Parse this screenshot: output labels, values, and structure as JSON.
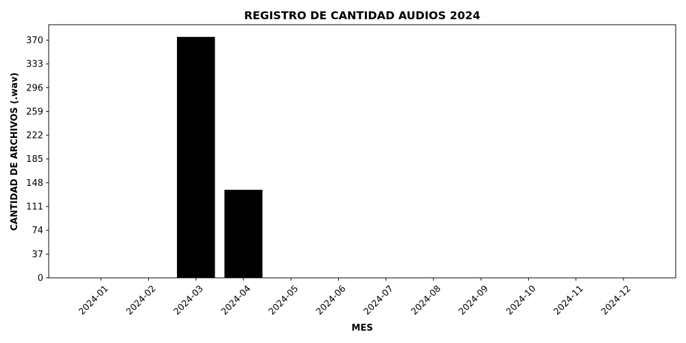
{
  "chart_data": {
    "type": "bar",
    "title": "REGISTRO DE CANTIDAD AUDIOS 2024",
    "xlabel": "MES",
    "ylabel": "CANTIDAD DE ARCHIVOS (.wav)",
    "categories": [
      "2024-01",
      "2024-02",
      "2024-03",
      "2024-04",
      "2024-05",
      "2024-06",
      "2024-07",
      "2024-08",
      "2024-09",
      "2024-10",
      "2024-11",
      "2024-12"
    ],
    "values": [
      0,
      0,
      375,
      137,
      0,
      0,
      0,
      0,
      0,
      0,
      0,
      0
    ],
    "yticks": [
      0,
      37,
      74,
      111,
      148,
      185,
      222,
      259,
      296,
      333,
      370
    ],
    "ylim": [
      0,
      394
    ],
    "bar_color": "#000000",
    "grid": false,
    "legend": "none"
  }
}
